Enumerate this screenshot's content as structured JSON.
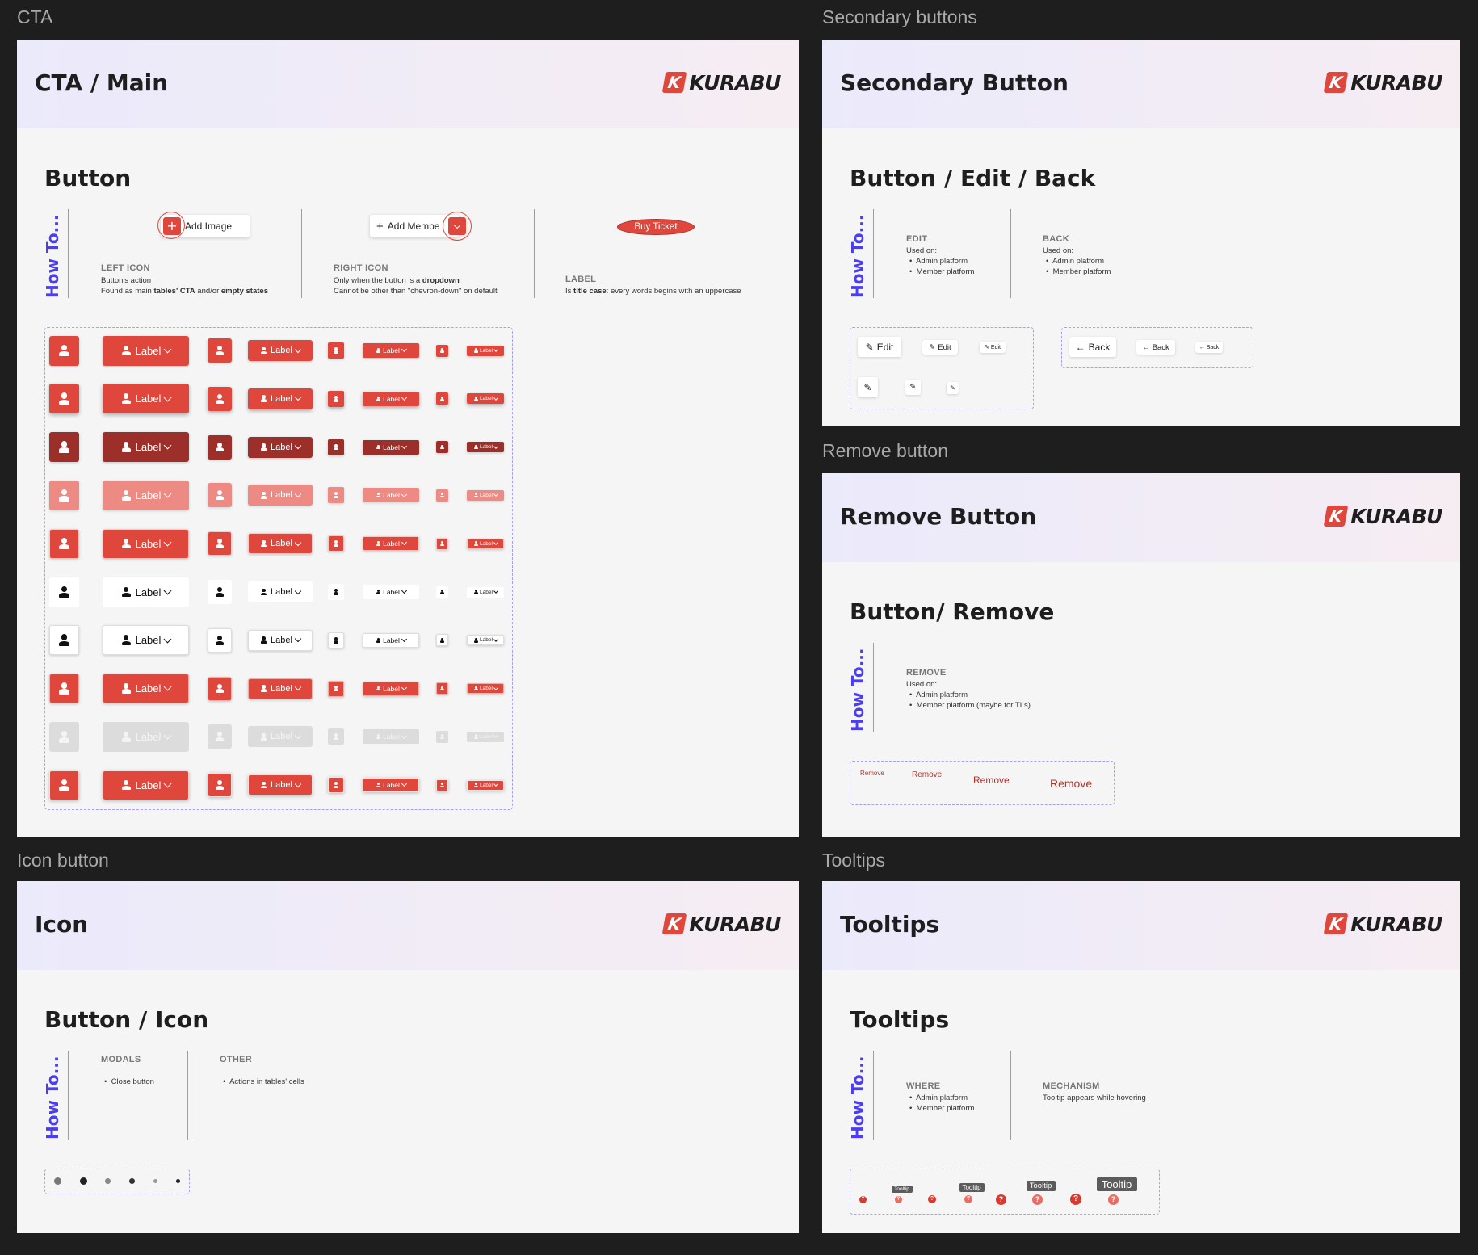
{
  "frames": {
    "cta_label": "CTA",
    "secondary_label": "Secondary buttons",
    "remove_label": "Remove button",
    "icon_label": "Icon button",
    "tooltips_label": "Tooltips"
  },
  "brand": {
    "logo_letter": "K",
    "logo_word": "KURABU",
    "accent": "#e0473c",
    "howto_color": "#4a3df2"
  },
  "howto_text": "How To...",
  "cta": {
    "header_title": "CTA / Main",
    "section_title": "Button",
    "examples": {
      "left_button": "Add Image",
      "right_button": "Add Membe",
      "label_button": "Buy Ticket"
    },
    "left_icon": {
      "caption": "LEFT ICON",
      "line1": "Button's action",
      "line2_pre": "Found as main ",
      "line2_b1": "tables' CTA",
      "line2_mid": " and/or ",
      "line2_b2": "empty states"
    },
    "right_icon": {
      "caption": "RIGHT ICON",
      "line1_pre": "Only when the button is a ",
      "line1_b": "dropdown",
      "line2": "Cannot be other than \"chevron-down\" on default"
    },
    "label": {
      "caption": "LABEL",
      "line_pre": "Is ",
      "line_b": "title case",
      "line_post": ": every words begins with an uppercase"
    },
    "button_label": "Label",
    "states": [
      "default",
      "hover",
      "pressed",
      "light",
      "focus",
      "white",
      "white-focus",
      "outline",
      "disabled",
      "focus-ring"
    ]
  },
  "secondary": {
    "header_title": "Secondary Button",
    "section_title": "Button / Edit / Back",
    "edit": {
      "caption": "EDIT",
      "used": "Used on:",
      "items": [
        "Admin platform",
        "Member platform"
      ]
    },
    "back": {
      "caption": "BACK",
      "used": "Used on:",
      "items": [
        "Admin platform",
        "Member platform"
      ]
    },
    "edit_label": "Edit",
    "back_label": "Back"
  },
  "remove": {
    "header_title": "Remove Button",
    "section_title": "Button/ Remove",
    "caption": "REMOVE",
    "used": "Used on:",
    "items": [
      "Admin platform",
      "Member platform (maybe for TLs)"
    ],
    "label": "Remove"
  },
  "icon": {
    "header_title": "Icon",
    "section_title": "Button / Icon",
    "modals": {
      "caption": "MODALS",
      "items": [
        "Close button"
      ]
    },
    "other": {
      "caption": "OTHER",
      "items": [
        "Actions in tables' cells"
      ]
    }
  },
  "tooltips": {
    "header_title": "Tooltips",
    "section_title": "Tooltips",
    "where": {
      "caption": "WHERE",
      "items": [
        "Admin platform",
        "Member platform"
      ]
    },
    "mechanism": {
      "caption": "MECHANISM",
      "line": "Tooltip appears while hovering"
    },
    "tooltip_label": "Tooltip",
    "help_glyph": "?"
  }
}
